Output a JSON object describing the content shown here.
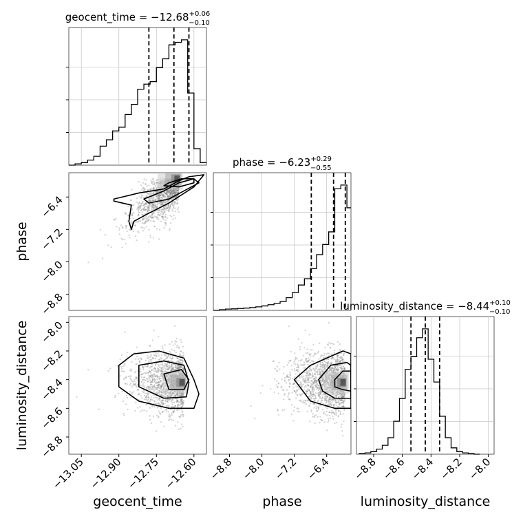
{
  "chart_data": {
    "type": "corner",
    "parameters": [
      {
        "name": "geocent_time",
        "title_prefix": "geocent_time = ",
        "median": "−12.68",
        "upper": "+0.06",
        "lower": "−0.10",
        "quantiles": [
          -12.78,
          -12.68,
          -12.62
        ],
        "range": [
          -13.1,
          -12.55
        ],
        "ticks": [
          "−13.05",
          "−12.90",
          "−12.75",
          "−12.60"
        ],
        "tick_values": [
          -13.05,
          -12.9,
          -12.75,
          -12.6
        ],
        "hist": {
          "bin_edges": [
            -13.1,
            -13.075,
            -13.05,
            -13.025,
            -13.0,
            -12.975,
            -12.95,
            -12.925,
            -12.9,
            -12.875,
            -12.85,
            -12.825,
            -12.8,
            -12.775,
            -12.75,
            -12.725,
            -12.7,
            -12.675,
            -12.65,
            -12.625,
            -12.6,
            -12.575,
            -12.55
          ],
          "counts": [
            0.0,
            0.01,
            0.02,
            0.04,
            0.07,
            0.15,
            0.2,
            0.27,
            0.3,
            0.4,
            0.48,
            0.6,
            0.64,
            0.66,
            0.77,
            0.84,
            0.95,
            0.97,
            0.99,
            0.57,
            0.13,
            0.02
          ]
        }
      },
      {
        "name": "phase",
        "title_prefix": "phase = ",
        "median": "−6.23",
        "upper": "+0.29",
        "lower": "−0.55",
        "quantiles": [
          -6.78,
          -6.23,
          -5.94
        ],
        "range": [
          -9.2,
          -5.8
        ],
        "ticks": [
          "−8.8",
          "−8.0",
          "−7.2",
          "−6.4"
        ],
        "tick_values": [
          -8.8,
          -8.0,
          -7.2,
          -6.4
        ],
        "hist": {
          "bin_edges": [
            -9.2,
            -9.05,
            -8.9,
            -8.75,
            -8.6,
            -8.45,
            -8.3,
            -8.15,
            -8.0,
            -7.85,
            -7.7,
            -7.55,
            -7.4,
            -7.25,
            -7.1,
            -6.95,
            -6.8,
            -6.65,
            -6.5,
            -6.35,
            -6.2,
            -6.05,
            -5.9,
            -5.8
          ],
          "counts": [
            0.0,
            0.005,
            0.01,
            0.012,
            0.015,
            0.018,
            0.022,
            0.028,
            0.035,
            0.045,
            0.055,
            0.07,
            0.1,
            0.14,
            0.2,
            0.25,
            0.33,
            0.44,
            0.52,
            0.62,
            0.96,
            0.99,
            0.81
          ]
        }
      },
      {
        "name": "luminosity_distance",
        "title_prefix": "luminosity_distance = ",
        "median": "−8.44",
        "upper": "+0.10",
        "lower": "−0.10",
        "quantiles": [
          -8.54,
          -8.44,
          -8.34
        ],
        "range": [
          -8.92,
          -7.96
        ],
        "ticks": [
          "−8.8",
          "−8.6",
          "−8.4",
          "−8.2",
          "−8.0"
        ],
        "tick_values": [
          -8.8,
          -8.6,
          -8.4,
          -8.2,
          -8.0
        ],
        "hist": {
          "bin_edges": [
            -8.9,
            -8.86,
            -8.82,
            -8.78,
            -8.74,
            -8.7,
            -8.66,
            -8.62,
            -8.58,
            -8.54,
            -8.5,
            -8.46,
            -8.42,
            -8.38,
            -8.34,
            -8.3,
            -8.26,
            -8.22,
            -8.18,
            -8.14,
            -8.1,
            -8.06
          ],
          "counts": [
            0.005,
            0.01,
            0.02,
            0.04,
            0.07,
            0.13,
            0.26,
            0.44,
            0.67,
            0.77,
            0.92,
            0.99,
            0.75,
            0.57,
            0.3,
            0.13,
            0.05,
            0.02,
            0.01,
            0.005,
            0.0
          ]
        }
      }
    ],
    "y_ticks_phase": [
      "−6.4",
      "−7.2",
      "−8.0",
      "−8.8"
    ],
    "y_ticks_luminosity": [
      "−8.0",
      "−8.2",
      "−8.4",
      "−8.6",
      "−8.8"
    ],
    "contours": [
      {
        "x_param": "geocent_time",
        "y_param": "phase",
        "peak": [
          -12.66,
          -5.95
        ],
        "spread": [
          0.09,
          0.65
        ],
        "correlation": 0.7,
        "levels": [
          [
            [
              -12.92,
              -6.45
            ],
            [
              -12.82,
              -6.3
            ],
            [
              -12.72,
              -6.2
            ],
            [
              -12.66,
              -6.0
            ],
            [
              -12.62,
              -5.9
            ],
            [
              -12.56,
              -5.85
            ],
            [
              -12.6,
              -6.15
            ],
            [
              -12.7,
              -6.55
            ],
            [
              -12.78,
              -6.8
            ],
            [
              -12.84,
              -7.0
            ],
            [
              -12.85,
              -7.2
            ],
            [
              -12.86,
              -7.0
            ],
            [
              -12.85,
              -6.6
            ],
            [
              -12.92,
              -6.5
            ]
          ],
          [
            [
              -12.8,
              -6.45
            ],
            [
              -12.72,
              -6.25
            ],
            [
              -12.66,
              -6.05
            ],
            [
              -12.6,
              -5.95
            ],
            [
              -12.58,
              -6.05
            ],
            [
              -12.64,
              -6.25
            ],
            [
              -12.7,
              -6.45
            ],
            [
              -12.78,
              -6.55
            ]
          ],
          [
            [
              -12.7,
              -6.05
            ],
            [
              -12.65,
              -5.95
            ],
            [
              -12.6,
              -5.95
            ],
            [
              -12.6,
              -6.05
            ],
            [
              -12.66,
              -6.15
            ],
            [
              -12.72,
              -6.12
            ]
          ]
        ]
      },
      {
        "x_param": "geocent_time",
        "y_param": "luminosity_distance",
        "peak": [
          -12.64,
          -8.42
        ],
        "spread": [
          0.1,
          0.11
        ],
        "correlation": 0.0,
        "levels": [
          [
            [
              -12.9,
              -8.3
            ],
            [
              -12.84,
              -8.22
            ],
            [
              -12.74,
              -8.2
            ],
            [
              -12.64,
              -8.25
            ],
            [
              -12.6,
              -8.4
            ],
            [
              -12.58,
              -8.5
            ],
            [
              -12.6,
              -8.6
            ],
            [
              -12.7,
              -8.6
            ],
            [
              -12.82,
              -8.55
            ],
            [
              -12.9,
              -8.45
            ]
          ],
          [
            [
              -12.82,
              -8.3
            ],
            [
              -12.72,
              -8.27
            ],
            [
              -12.64,
              -8.3
            ],
            [
              -12.62,
              -8.42
            ],
            [
              -12.63,
              -8.52
            ],
            [
              -12.72,
              -8.53
            ],
            [
              -12.82,
              -8.45
            ]
          ],
          [
            [
              -12.72,
              -8.36
            ],
            [
              -12.65,
              -8.33
            ],
            [
              -12.62,
              -8.4
            ],
            [
              -12.64,
              -8.47
            ],
            [
              -12.7,
              -8.47
            ]
          ]
        ]
      },
      {
        "x_param": "phase",
        "y_param": "luminosity_distance",
        "peak": [
          -5.95,
          -8.42
        ],
        "spread": [
          0.7,
          0.11
        ],
        "correlation": 0.0,
        "levels": [
          [
            [
              -7.2,
              -8.4
            ],
            [
              -6.8,
              -8.3
            ],
            [
              -6.4,
              -8.25
            ],
            [
              -6.0,
              -8.2
            ],
            [
              -5.8,
              -8.22
            ],
            [
              -5.8,
              -8.6
            ],
            [
              -6.2,
              -8.6
            ],
            [
              -6.8,
              -8.55
            ]
          ],
          [
            [
              -6.6,
              -8.4
            ],
            [
              -6.3,
              -8.3
            ],
            [
              -5.9,
              -8.28
            ],
            [
              -5.8,
              -8.3
            ],
            [
              -5.8,
              -8.53
            ],
            [
              -6.2,
              -8.53
            ],
            [
              -6.5,
              -8.48
            ]
          ],
          [
            [
              -6.2,
              -8.4
            ],
            [
              -6.0,
              -8.34
            ],
            [
              -5.8,
              -8.34
            ],
            [
              -5.8,
              -8.48
            ],
            [
              -6.0,
              -8.47
            ],
            [
              -6.2,
              -8.45
            ]
          ]
        ]
      }
    ]
  }
}
